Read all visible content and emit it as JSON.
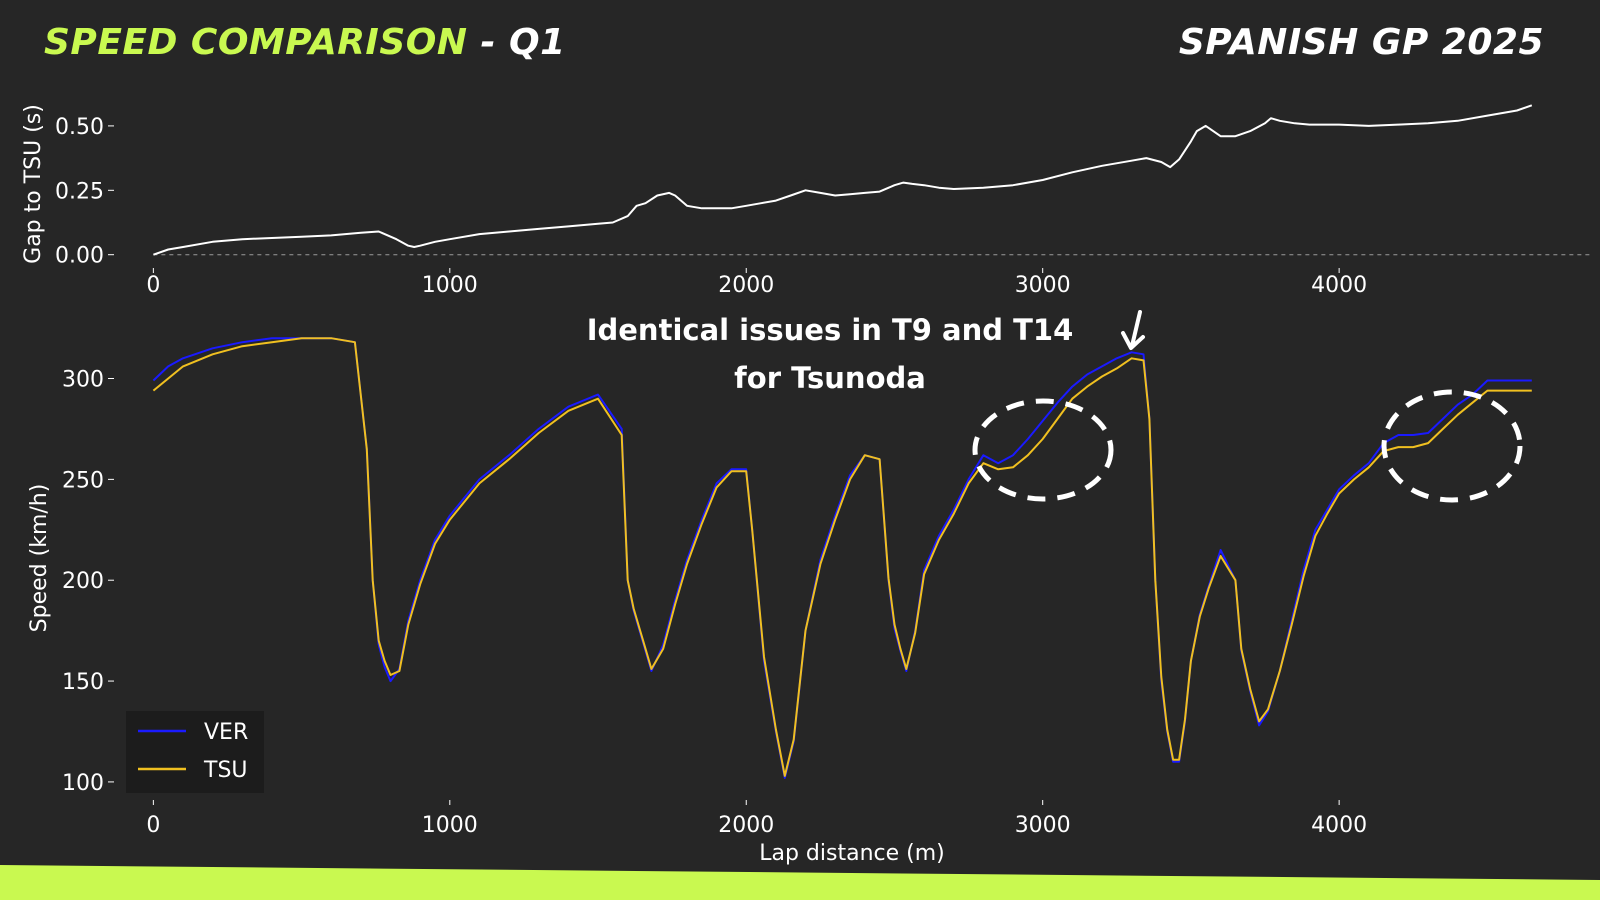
{
  "header": {
    "title": "SPEED COMPARISON",
    "separator": " - ",
    "session": "Q1",
    "event": "SPANISH GP 2025"
  },
  "colors": {
    "background": "#262626",
    "accent": "#c9f950",
    "ver": "#1a1aff",
    "tsu": "#f0c020",
    "gap": "#ffffff"
  },
  "annotation": {
    "line1": "Identical issues in T9 and T14",
    "line2": "for Tsunoda"
  },
  "chart_data": [
    {
      "type": "line",
      "ylabel": "Gap to TSU (s)",
      "xlim": [
        -180,
        4880
      ],
      "ylim": [
        -0.04,
        0.62
      ],
      "xticks": [
        0,
        1000,
        2000,
        3000,
        4000
      ],
      "yticks": [
        0.0,
        0.25,
        0.5
      ],
      "ytick_labels": [
        "0.00",
        "0.25",
        "0.50"
      ],
      "reference_line": 0.0,
      "series": [
        {
          "x": [
            0,
            50,
            100,
            200,
            300,
            400,
            500,
            600,
            700,
            760,
            820,
            860,
            880,
            900,
            950,
            1000,
            1100,
            1200,
            1300,
            1400,
            1500,
            1550,
            1600,
            1630,
            1660,
            1700,
            1740,
            1760,
            1800,
            1850,
            1900,
            1950,
            2000,
            2050,
            2100,
            2150,
            2200,
            2250,
            2300,
            2350,
            2400,
            2450,
            2500,
            2530,
            2560,
            2600,
            2650,
            2700,
            2800,
            2900,
            3000,
            3100,
            3200,
            3300,
            3350,
            3400,
            3430,
            3460,
            3500,
            3520,
            3550,
            3600,
            3650,
            3700,
            3750,
            3770,
            3800,
            3850,
            3900,
            4000,
            4100,
            4200,
            4300,
            4400,
            4500,
            4600,
            4650
          ],
          "values": [
            0.0,
            0.02,
            0.03,
            0.05,
            0.06,
            0.065,
            0.07,
            0.075,
            0.085,
            0.09,
            0.06,
            0.035,
            0.03,
            0.035,
            0.05,
            0.06,
            0.08,
            0.09,
            0.1,
            0.11,
            0.12,
            0.125,
            0.15,
            0.19,
            0.2,
            0.23,
            0.24,
            0.23,
            0.19,
            0.18,
            0.18,
            0.18,
            0.19,
            0.2,
            0.21,
            0.23,
            0.25,
            0.24,
            0.23,
            0.235,
            0.24,
            0.245,
            0.27,
            0.28,
            0.275,
            0.27,
            0.26,
            0.255,
            0.26,
            0.27,
            0.29,
            0.32,
            0.345,
            0.365,
            0.375,
            0.36,
            0.34,
            0.37,
            0.44,
            0.48,
            0.5,
            0.46,
            0.46,
            0.48,
            0.51,
            0.53,
            0.52,
            0.51,
            0.505,
            0.505,
            0.5,
            0.505,
            0.51,
            0.52,
            0.54,
            0.56,
            0.58
          ]
        }
      ]
    },
    {
      "type": "line",
      "xlabel": "Lap distance (m)",
      "ylabel": "Speed (km/h)",
      "xlim": [
        -180,
        4880
      ],
      "ylim": [
        95,
        330
      ],
      "xticks": [
        0,
        1000,
        2000,
        3000,
        4000
      ],
      "yticks": [
        100,
        150,
        200,
        250,
        300
      ],
      "legend_position": "bottom-left",
      "categories_x": [
        0,
        50,
        100,
        200,
        300,
        400,
        500,
        600,
        680,
        720,
        740,
        760,
        780,
        800,
        830,
        860,
        900,
        950,
        1000,
        1100,
        1200,
        1300,
        1400,
        1500,
        1580,
        1600,
        1620,
        1660,
        1680,
        1720,
        1760,
        1800,
        1850,
        1900,
        1950,
        2000,
        2020,
        2060,
        2100,
        2130,
        2160,
        2200,
        2250,
        2300,
        2350,
        2400,
        2450,
        2480,
        2500,
        2520,
        2540,
        2570,
        2600,
        2650,
        2700,
        2750,
        2800,
        2850,
        2900,
        2950,
        3000,
        3050,
        3100,
        3150,
        3200,
        3250,
        3300,
        3340,
        3360,
        3380,
        3400,
        3420,
        3440,
        3460,
        3480,
        3500,
        3530,
        3560,
        3600,
        3650,
        3670,
        3700,
        3730,
        3760,
        3800,
        3840,
        3880,
        3920,
        3960,
        4000,
        4050,
        4100,
        4150,
        4200,
        4250,
        4300,
        4350,
        4400,
        4450,
        4500,
        4550,
        4600,
        4650
      ],
      "series": [
        {
          "name": "VER",
          "values": [
            299,
            306,
            310,
            315,
            318,
            320,
            320,
            320,
            318,
            265,
            200,
            168,
            157,
            150,
            156,
            180,
            200,
            220,
            232,
            250,
            262,
            275,
            286,
            292,
            275,
            200,
            185,
            165,
            155,
            168,
            190,
            210,
            230,
            248,
            255,
            255,
            225,
            160,
            125,
            102,
            120,
            175,
            210,
            232,
            252,
            262,
            260,
            200,
            176,
            165,
            155,
            175,
            205,
            222,
            235,
            250,
            262,
            258,
            262,
            270,
            279,
            288,
            296,
            302,
            306,
            310,
            313,
            312,
            280,
            200,
            150,
            125,
            110,
            110,
            130,
            160,
            183,
            197,
            215,
            200,
            165,
            145,
            128,
            135,
            155,
            180,
            205,
            225,
            235,
            245,
            252,
            258,
            268,
            272,
            272,
            273,
            280,
            287,
            292,
            299,
            299,
            299,
            299
          ]
        },
        {
          "name": "TSU",
          "values": [
            294,
            300,
            306,
            312,
            316,
            318,
            320,
            320,
            318,
            265,
            200,
            170,
            160,
            153,
            155,
            178,
            198,
            218,
            230,
            248,
            260,
            273,
            284,
            290,
            272,
            200,
            186,
            166,
            156,
            166,
            188,
            208,
            228,
            246,
            254,
            254,
            225,
            162,
            126,
            103,
            121,
            175,
            208,
            230,
            250,
            262,
            260,
            201,
            178,
            166,
            156,
            174,
            203,
            220,
            233,
            248,
            258,
            255,
            256,
            262,
            270,
            280,
            290,
            296,
            301,
            305,
            310,
            309,
            280,
            200,
            152,
            126,
            111,
            111,
            131,
            160,
            182,
            196,
            212,
            200,
            166,
            146,
            130,
            136,
            155,
            178,
            202,
            222,
            233,
            243,
            250,
            256,
            264,
            266,
            266,
            268,
            275,
            282,
            288,
            294,
            294,
            294,
            294
          ]
        }
      ]
    }
  ]
}
